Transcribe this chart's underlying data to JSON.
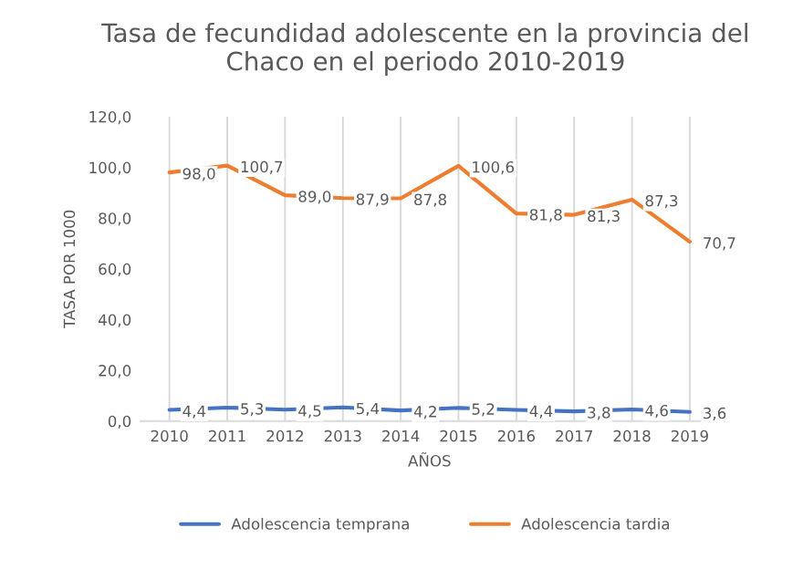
{
  "chart_data": {
    "type": "line",
    "title": "Tasa de fecundidad adolescente en la provincia del\nChaco en el periodo 2010-2019",
    "xlabel": "AÑOS",
    "ylabel": "TASA POR 1000",
    "categories": [
      "2010",
      "2011",
      "2012",
      "2013",
      "2014",
      "2015",
      "2016",
      "2017",
      "2018",
      "2019"
    ],
    "series": [
      {
        "name": "Adolescencia temprana",
        "color": "#4472c4",
        "values": [
          4.4,
          5.3,
          4.5,
          5.4,
          4.2,
          5.2,
          4.4,
          3.8,
          4.6,
          3.6
        ],
        "value_labels": [
          "4,4",
          "5,3",
          "4,5",
          "5,4",
          "4,2",
          "5,2",
          "4,4",
          "3,8",
          "4,6",
          "3,6"
        ]
      },
      {
        "name": "Adolescencia tardia",
        "color": "#ed7d31",
        "values": [
          98.0,
          100.7,
          89.0,
          87.9,
          87.8,
          100.6,
          81.8,
          81.3,
          87.3,
          70.7
        ],
        "value_labels": [
          "98,0",
          "100,7",
          "89,0",
          "87,9",
          "87,8",
          "100,6",
          "81,8",
          "81,3",
          "87,3",
          "70,7"
        ]
      }
    ],
    "ylim": [
      0,
      120
    ],
    "yticks": [
      {
        "value": 0,
        "label": "0,0"
      },
      {
        "value": 20,
        "label": "20,0"
      },
      {
        "value": 40,
        "label": "40,0"
      },
      {
        "value": 60,
        "label": "60,0"
      },
      {
        "value": 80,
        "label": "80,0"
      },
      {
        "value": 100,
        "label": "100,0"
      },
      {
        "value": 120,
        "label": "120,0"
      }
    ],
    "grid": "x",
    "legend": "bottom",
    "marker": "none",
    "line_style": "solid"
  }
}
